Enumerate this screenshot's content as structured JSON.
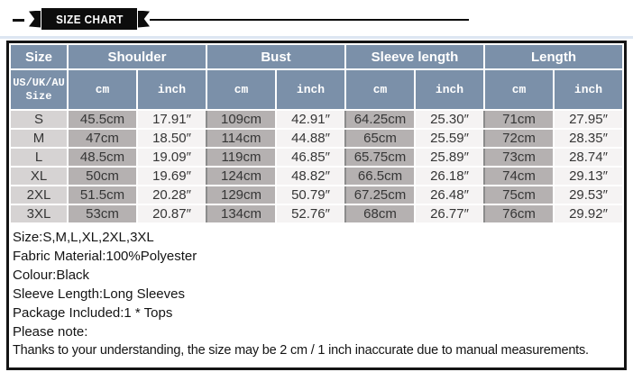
{
  "banner": {
    "title": "SIZE CHART"
  },
  "colors": {
    "header_bg": "#7b90a9",
    "size_col_bg": "#d6d3d3",
    "cm_col_bg": "#b5b1b1",
    "inch_col_bg": "#f5f3f3",
    "border": "#141414",
    "ribbon_bg": "#0d0d0d"
  },
  "table": {
    "size_group_label": "Size",
    "groups": [
      "Shoulder",
      "Bust",
      "Sleeve length",
      "Length"
    ],
    "size_header_line1": "US/UK/AU",
    "size_header_line2": "Size",
    "unit_cm": "cm",
    "unit_inch": "inch",
    "rows": [
      {
        "size": "S",
        "sh_cm": "45.5cm",
        "sh_in": "17.91″",
        "bu_cm": "109cm",
        "bu_in": "42.91″",
        "sl_cm": "64.25cm",
        "sl_in": "25.30″",
        "le_cm": "71cm",
        "le_in": "27.95″"
      },
      {
        "size": "M",
        "sh_cm": "47cm",
        "sh_in": "18.50″",
        "bu_cm": "114cm",
        "bu_in": "44.88″",
        "sl_cm": "65cm",
        "sl_in": "25.59″",
        "le_cm": "72cm",
        "le_in": "28.35″"
      },
      {
        "size": "L",
        "sh_cm": "48.5cm",
        "sh_in": "19.09″",
        "bu_cm": "119cm",
        "bu_in": "46.85″",
        "sl_cm": "65.75cm",
        "sl_in": "25.89″",
        "le_cm": "73cm",
        "le_in": "28.74″"
      },
      {
        "size": "XL",
        "sh_cm": "50cm",
        "sh_in": "19.69″",
        "bu_cm": "124cm",
        "bu_in": "48.82″",
        "sl_cm": "66.5cm",
        "sl_in": "26.18″",
        "le_cm": "74cm",
        "le_in": "29.13″"
      },
      {
        "size": "2XL",
        "sh_cm": "51.5cm",
        "sh_in": "20.28″",
        "bu_cm": "129cm",
        "bu_in": "50.79″",
        "sl_cm": "67.25cm",
        "sl_in": "26.48″",
        "le_cm": "75cm",
        "le_in": "29.53″"
      },
      {
        "size": "3XL",
        "sh_cm": "53cm",
        "sh_in": "20.87″",
        "bu_cm": "134cm",
        "bu_in": "52.76″",
        "sl_cm": "68cm",
        "sl_in": "26.77″",
        "le_cm": "76cm",
        "le_in": "29.92″"
      }
    ]
  },
  "notes": [
    "Size:S,M,L,XL,2XL,3XL",
    "Fabric Material:100%Polyester",
    "Colour:Black",
    "Sleeve Length:Long Sleeves",
    "Package Included:1 * Tops",
    "Please note:",
    "Thanks to your understanding, the size may be 2 cm / 1 inch inaccurate due to manual measurements."
  ]
}
